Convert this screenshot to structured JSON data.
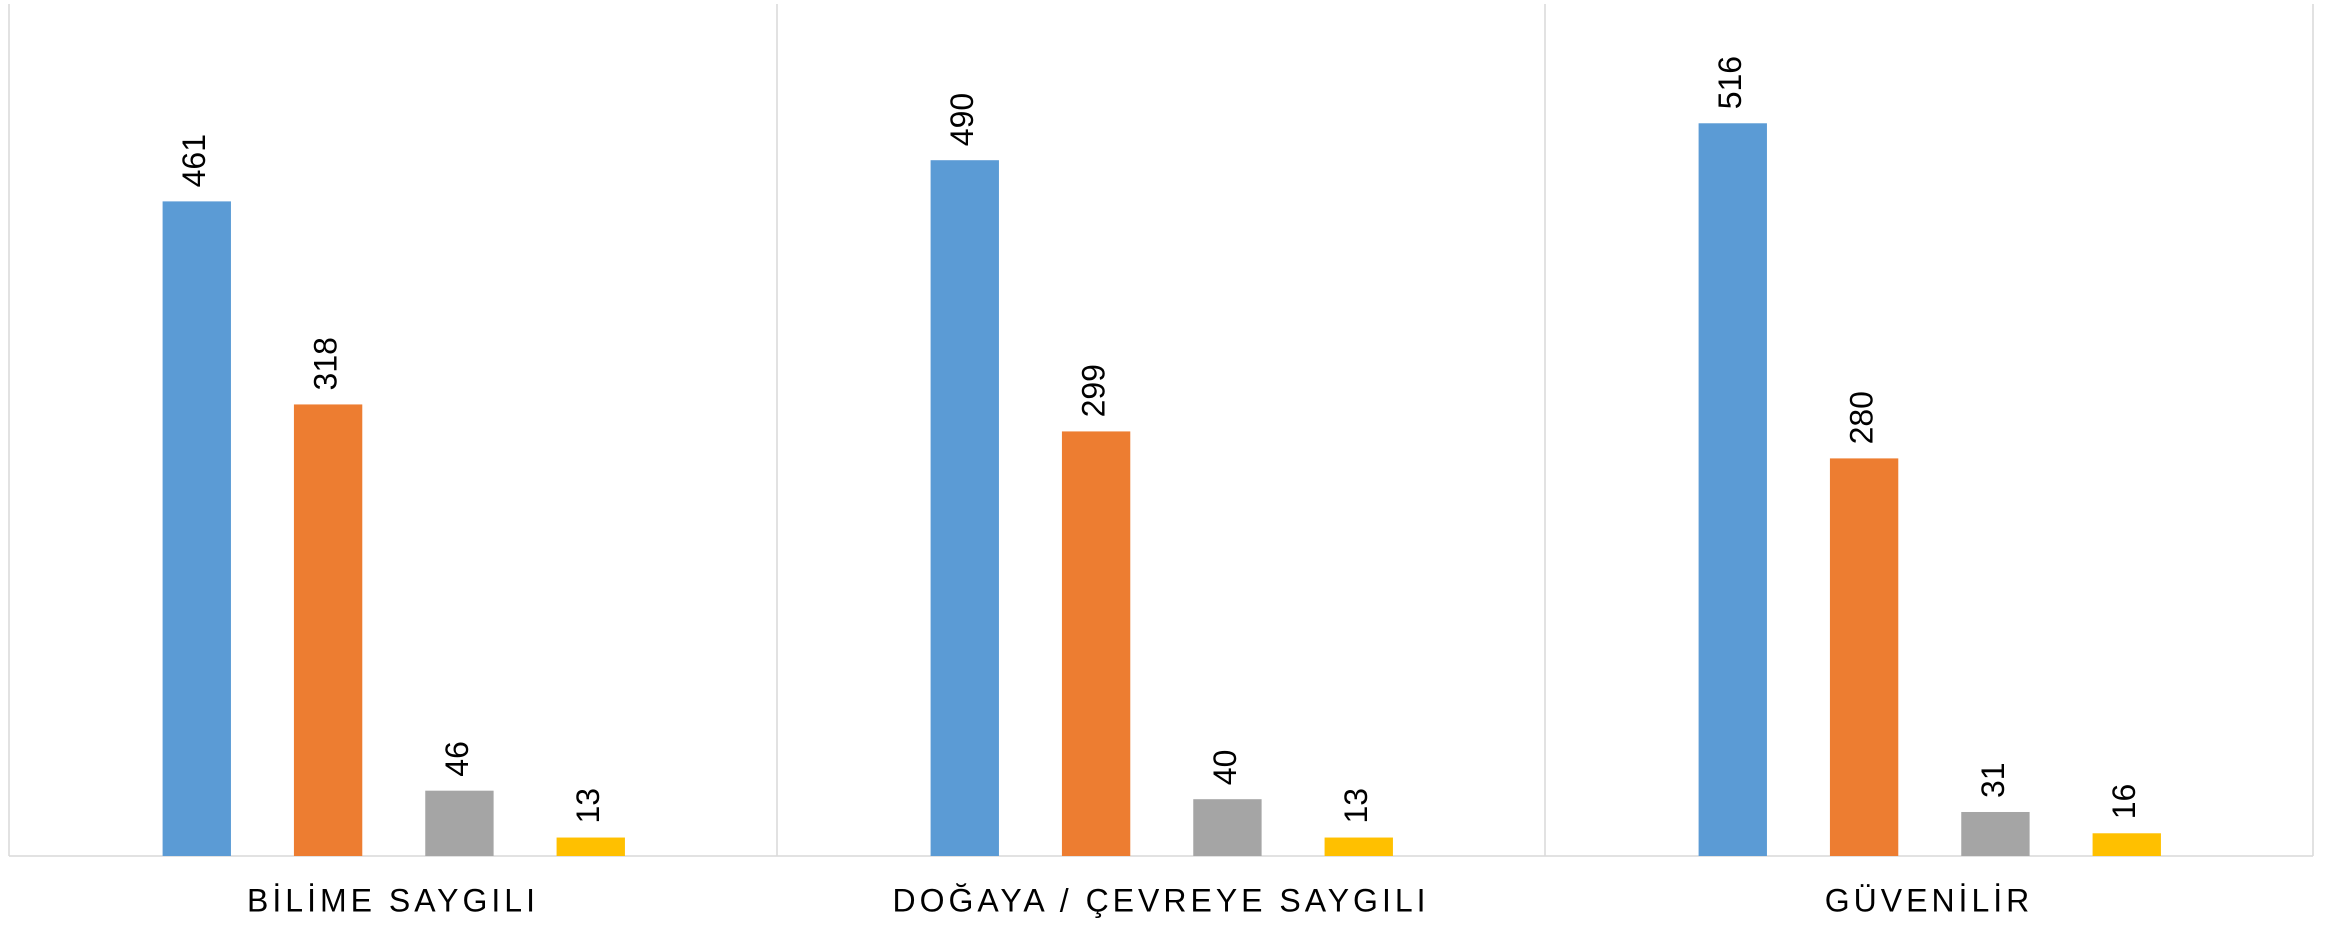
{
  "chart_data": {
    "type": "bar",
    "categories": [
      "BİLİME SAYGILI",
      "DOĞAYA / ÇEVREYE SAYGILI",
      "GÜVENİLİR"
    ],
    "series": [
      {
        "color": "#5b9bd5",
        "values": [
          461,
          490,
          516
        ]
      },
      {
        "color": "#ed7d31",
        "values": [
          318,
          299,
          280
        ]
      },
      {
        "color": "#a5a5a5",
        "values": [
          46,
          40,
          31
        ]
      },
      {
        "color": "#ffc000",
        "values": [
          13,
          13,
          16
        ]
      }
    ],
    "ylim": [
      0,
      600
    ]
  }
}
